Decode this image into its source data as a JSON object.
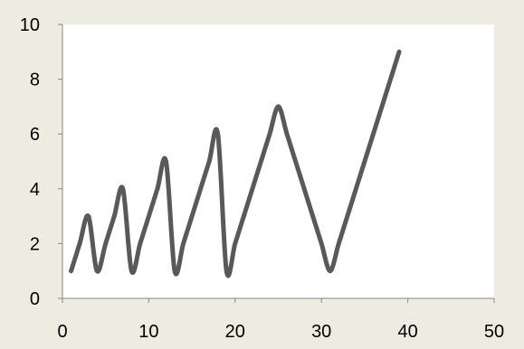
{
  "chart_data": {
    "type": "line",
    "title": "",
    "xlabel": "",
    "ylabel": "",
    "xlim": [
      0,
      50
    ],
    "ylim": [
      0,
      10
    ],
    "x_ticks": [
      0,
      10,
      20,
      30,
      40,
      50
    ],
    "y_ticks": [
      0,
      2,
      4,
      6,
      8,
      10
    ],
    "grid": false,
    "legend": "none",
    "smooth": true,
    "series": [
      {
        "points": [
          [
            1,
            1
          ],
          [
            2,
            2
          ],
          [
            3,
            3
          ],
          [
            4,
            1
          ],
          [
            5,
            2
          ],
          [
            6,
            3
          ],
          [
            7,
            4
          ],
          [
            8,
            1
          ],
          [
            9,
            2
          ],
          [
            10,
            3
          ],
          [
            11,
            4
          ],
          [
            12,
            5
          ],
          [
            13,
            1
          ],
          [
            14,
            2
          ],
          [
            15,
            3
          ],
          [
            16,
            4
          ],
          [
            17,
            5
          ],
          [
            18,
            6
          ],
          [
            19,
            1
          ],
          [
            20,
            2
          ],
          [
            21,
            3
          ],
          [
            22,
            4
          ],
          [
            23,
            5
          ],
          [
            24,
            6
          ],
          [
            25,
            7
          ],
          [
            26,
            6
          ],
          [
            27,
            5
          ],
          [
            28,
            4
          ],
          [
            29,
            3
          ],
          [
            30,
            2
          ],
          [
            31,
            1
          ],
          [
            32,
            2
          ],
          [
            33,
            3
          ],
          [
            34,
            4
          ],
          [
            35,
            5
          ],
          [
            36,
            6
          ],
          [
            37,
            7
          ],
          [
            38,
            8
          ],
          [
            39,
            9
          ]
        ]
      }
    ],
    "colors": {
      "background": "#eeece1",
      "plot_area": "#ffffff",
      "line": "#595959",
      "axis": "#868686"
    }
  }
}
